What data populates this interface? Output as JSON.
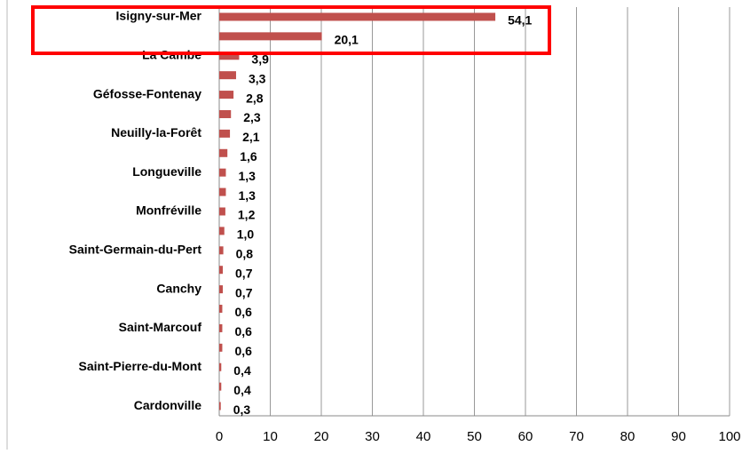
{
  "chart_data": {
    "type": "bar",
    "orientation": "horizontal",
    "categories": [
      "Isigny-sur-Mer",
      null,
      "La Cambe",
      null,
      "Géfosse-Fontenay",
      null,
      "Neuilly-la-Forêt",
      null,
      "Longueville",
      null,
      "Monfréville",
      null,
      "Saint-Germain-du-Pert",
      null,
      "Canchy",
      null,
      "Saint-Marcouf",
      null,
      "Saint-Pierre-du-Mont",
      null,
      "Cardonville"
    ],
    "values": [
      54.1,
      20.1,
      3.9,
      3.3,
      2.8,
      2.3,
      2.1,
      1.6,
      1.3,
      1.3,
      1.2,
      1.0,
      0.8,
      0.7,
      0.7,
      0.6,
      0.6,
      0.6,
      0.4,
      0.4,
      0.3
    ],
    "value_labels": [
      "54,1",
      "20,1",
      "3,9",
      "3,3",
      "2,8",
      "2,3",
      "2,1",
      "1,6",
      "1,3",
      "1,3",
      "1,2",
      "1,0",
      "0,8",
      "0,7",
      "0,7",
      "0,6",
      "0,6",
      "0,6",
      "0,4",
      "0,4",
      "0,3"
    ],
    "color": "#c0504d",
    "xlim": [
      0,
      100
    ],
    "xticks": [
      0,
      10,
      20,
      30,
      40,
      50,
      60,
      70,
      80,
      90,
      100
    ],
    "grid": true
  }
}
